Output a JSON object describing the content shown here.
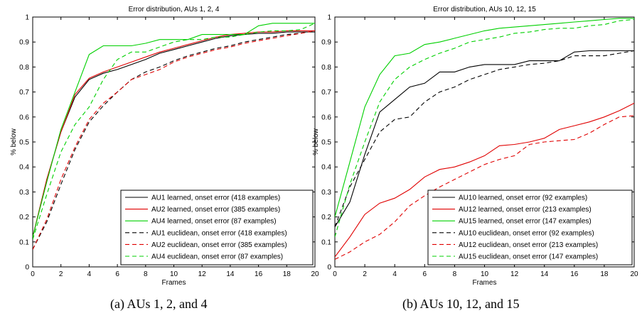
{
  "chart_data": [
    {
      "type": "line",
      "title": "Error distribution, AUs 1, 2, 4",
      "xlabel": "Frames",
      "ylabel": "% below",
      "xlim": [
        0,
        20
      ],
      "ylim": [
        0,
        1
      ],
      "xticks": [
        0,
        2,
        4,
        6,
        8,
        10,
        12,
        14,
        16,
        18,
        20
      ],
      "yticks": [
        0,
        0.1,
        0.2,
        0.3,
        0.4,
        0.5,
        0.6,
        0.7,
        0.8,
        0.9,
        1
      ],
      "legend_position": "bottom-right",
      "x": [
        0,
        1,
        2,
        3,
        4,
        5,
        6,
        7,
        8,
        9,
        10,
        11,
        12,
        13,
        14,
        15,
        16,
        17,
        18,
        19,
        20
      ],
      "caption": "(a) AUs 1, 2, and 4",
      "series": [
        {
          "name": "AU1 learned, onset error (418 examples)",
          "color": "#000000",
          "dash": "solid",
          "values": [
            0.12,
            0.35,
            0.54,
            0.68,
            0.75,
            0.775,
            0.79,
            0.81,
            0.83,
            0.855,
            0.87,
            0.885,
            0.9,
            0.915,
            0.925,
            0.93,
            0.935,
            0.935,
            0.94,
            0.94,
            0.94
          ]
        },
        {
          "name": "AU2 learned, onset error (385 examples)",
          "color": "#e00000",
          "dash": "solid",
          "values": [
            0.12,
            0.35,
            0.54,
            0.69,
            0.755,
            0.78,
            0.8,
            0.82,
            0.84,
            0.86,
            0.875,
            0.89,
            0.905,
            0.92,
            0.93,
            0.935,
            0.94,
            0.94,
            0.945,
            0.945,
            0.945
          ]
        },
        {
          "name": "AU4 learned, onset error (87 examples)",
          "color": "#00d000",
          "dash": "solid",
          "values": [
            0.12,
            0.34,
            0.55,
            0.7,
            0.85,
            0.885,
            0.885,
            0.885,
            0.895,
            0.91,
            0.91,
            0.91,
            0.93,
            0.93,
            0.93,
            0.93,
            0.965,
            0.975,
            0.975,
            0.975,
            0.975
          ]
        },
        {
          "name": "AU1 euclidean, onset error (418 examples)",
          "color": "#000000",
          "dash": "dashed",
          "values": [
            0.07,
            0.18,
            0.33,
            0.47,
            0.58,
            0.645,
            0.7,
            0.75,
            0.78,
            0.8,
            0.825,
            0.845,
            0.86,
            0.875,
            0.885,
            0.9,
            0.91,
            0.92,
            0.93,
            0.935,
            0.945
          ]
        },
        {
          "name": "AU2 euclidean, onset error (385 examples)",
          "color": "#e00000",
          "dash": "dashed",
          "values": [
            0.07,
            0.19,
            0.35,
            0.48,
            0.59,
            0.655,
            0.7,
            0.75,
            0.77,
            0.79,
            0.82,
            0.84,
            0.855,
            0.87,
            0.88,
            0.895,
            0.905,
            0.915,
            0.925,
            0.935,
            0.945
          ]
        },
        {
          "name": "AU4 euclidean, onset error (87 examples)",
          "color": "#00d000",
          "dash": "dashed",
          "values": [
            0.11,
            0.29,
            0.46,
            0.57,
            0.64,
            0.75,
            0.83,
            0.86,
            0.86,
            0.88,
            0.9,
            0.91,
            0.91,
            0.92,
            0.92,
            0.93,
            0.94,
            0.945,
            0.945,
            0.95,
            0.975
          ]
        }
      ]
    },
    {
      "type": "line",
      "title": "Error distribution, AUs 10, 12, 15",
      "xlabel": "Frames",
      "ylabel": "% below",
      "xlim": [
        0,
        20
      ],
      "ylim": [
        0,
        1
      ],
      "xticks": [
        0,
        2,
        4,
        6,
        8,
        10,
        12,
        14,
        16,
        18,
        20
      ],
      "yticks": [
        0,
        0.1,
        0.2,
        0.3,
        0.4,
        0.5,
        0.6,
        0.7,
        0.8,
        0.9,
        1
      ],
      "legend_position": "bottom-right",
      "x": [
        0,
        1,
        2,
        3,
        4,
        5,
        6,
        7,
        8,
        9,
        10,
        11,
        12,
        13,
        14,
        15,
        16,
        17,
        18,
        19,
        20
      ],
      "caption": "(b) AUs 10, 12, and 15",
      "series": [
        {
          "name": "AU10 learned, onset error (92 examples)",
          "color": "#000000",
          "dash": "solid",
          "values": [
            0.16,
            0.26,
            0.45,
            0.62,
            0.67,
            0.72,
            0.735,
            0.78,
            0.78,
            0.8,
            0.81,
            0.81,
            0.81,
            0.825,
            0.825,
            0.825,
            0.86,
            0.865,
            0.865,
            0.865,
            0.865
          ]
        },
        {
          "name": "AU12 learned, onset error (213 examples)",
          "color": "#e00000",
          "dash": "solid",
          "values": [
            0.04,
            0.12,
            0.21,
            0.255,
            0.275,
            0.31,
            0.36,
            0.39,
            0.4,
            0.42,
            0.445,
            0.485,
            0.49,
            0.5,
            0.515,
            0.55,
            0.565,
            0.58,
            0.6,
            0.625,
            0.655
          ]
        },
        {
          "name": "AU15 learned, onset error (147 examples)",
          "color": "#00d000",
          "dash": "solid",
          "values": [
            0.2,
            0.42,
            0.64,
            0.77,
            0.845,
            0.855,
            0.89,
            0.9,
            0.915,
            0.93,
            0.945,
            0.955,
            0.96,
            0.965,
            0.97,
            0.975,
            0.98,
            0.985,
            0.99,
            0.995,
            0.995
          ]
        },
        {
          "name": "AU10 euclidean, onset error (92 examples)",
          "color": "#000000",
          "dash": "dashed",
          "values": [
            0.16,
            0.32,
            0.43,
            0.54,
            0.59,
            0.6,
            0.66,
            0.7,
            0.72,
            0.75,
            0.77,
            0.79,
            0.8,
            0.81,
            0.815,
            0.825,
            0.845,
            0.845,
            0.845,
            0.855,
            0.865
          ]
        },
        {
          "name": "AU12 euclidean, onset error (213 examples)",
          "color": "#e00000",
          "dash": "dashed",
          "values": [
            0.03,
            0.06,
            0.1,
            0.13,
            0.18,
            0.245,
            0.285,
            0.32,
            0.35,
            0.38,
            0.41,
            0.43,
            0.445,
            0.49,
            0.5,
            0.505,
            0.51,
            0.535,
            0.57,
            0.6,
            0.605
          ]
        },
        {
          "name": "AU15 euclidean, onset error (147 examples)",
          "color": "#00d000",
          "dash": "dashed",
          "values": [
            0.12,
            0.33,
            0.5,
            0.66,
            0.75,
            0.8,
            0.83,
            0.855,
            0.875,
            0.9,
            0.91,
            0.92,
            0.935,
            0.94,
            0.95,
            0.955,
            0.955,
            0.965,
            0.97,
            0.985,
            0.99
          ]
        }
      ]
    }
  ]
}
